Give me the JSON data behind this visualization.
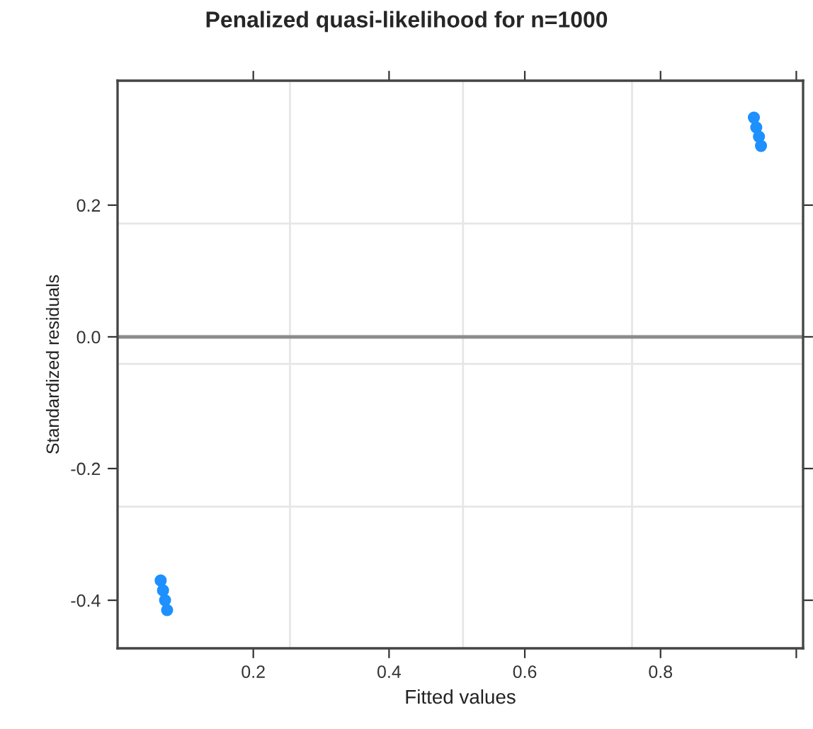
{
  "chart_data": {
    "type": "scatter",
    "title": "Penalized quasi-likelihood for n=1000",
    "xlabel": "Fitted values",
    "ylabel": "Standardized residuals",
    "x": [
      0.9375,
      0.941,
      0.945,
      0.948,
      0.0635,
      0.067,
      0.07,
      0.073
    ],
    "series": [
      {
        "color": "#1e90ff",
        "values": [
          0.333,
          0.318,
          0.304,
          0.29,
          -0.37,
          -0.385,
          -0.4,
          -0.415
        ]
      }
    ],
    "marker": "circle",
    "grid": false,
    "xlim": [
      0.0,
      1.01
    ],
    "xticks": [
      0.2,
      0.4,
      0.6,
      0.8,
      {
        "value": 1.0,
        "label": null
      }
    ],
    "ylim": [
      -0.473,
      0.389
    ],
    "yticks": [
      -0.4,
      -0.2,
      {
        "value": 0.0,
        "label": "0.0"
      },
      0.2
    ],
    "ref_lines": [
      {
        "axis": "x",
        "value": 0.254,
        "color": "#e6e6e6"
      },
      {
        "axis": "x",
        "value": 0.509,
        "color": "#e6e6e6"
      },
      {
        "axis": "x",
        "value": 0.758,
        "color": "#e6e6e6"
      },
      {
        "axis": "y",
        "value": 0.172,
        "color": "#e6e6e6"
      },
      {
        "axis": "y",
        "value": -0.041,
        "color": "#e6e6e6"
      },
      {
        "axis": "y",
        "value": -0.258,
        "color": "#e6e6e6"
      },
      {
        "axis": "y",
        "value": 0.0,
        "color": "#8c8c8c"
      }
    ]
  }
}
